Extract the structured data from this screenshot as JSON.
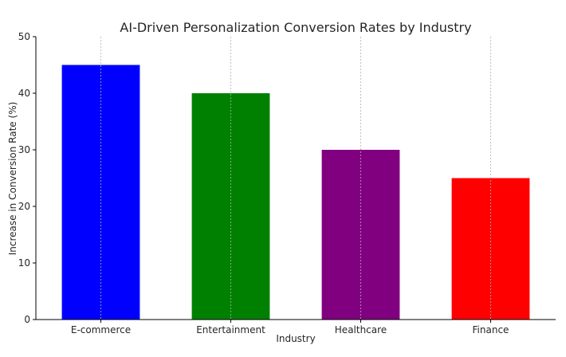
{
  "chart_data": {
    "type": "bar",
    "title": "AI-Driven Personalization Conversion Rates by Industry",
    "xlabel": "Industry",
    "ylabel": "Increase in Conversion Rate (%)",
    "categories": [
      "E-commerce",
      "Entertainment",
      "Healthcare",
      "Finance"
    ],
    "values": [
      45,
      40,
      30,
      25
    ],
    "colors": [
      "#0000ff",
      "#008000",
      "#800080",
      "#ff0000"
    ],
    "ylim": [
      0,
      50
    ],
    "yticks": [
      0,
      10,
      20,
      30,
      40,
      50
    ],
    "grid": "x-only dashed",
    "legend": "none"
  }
}
